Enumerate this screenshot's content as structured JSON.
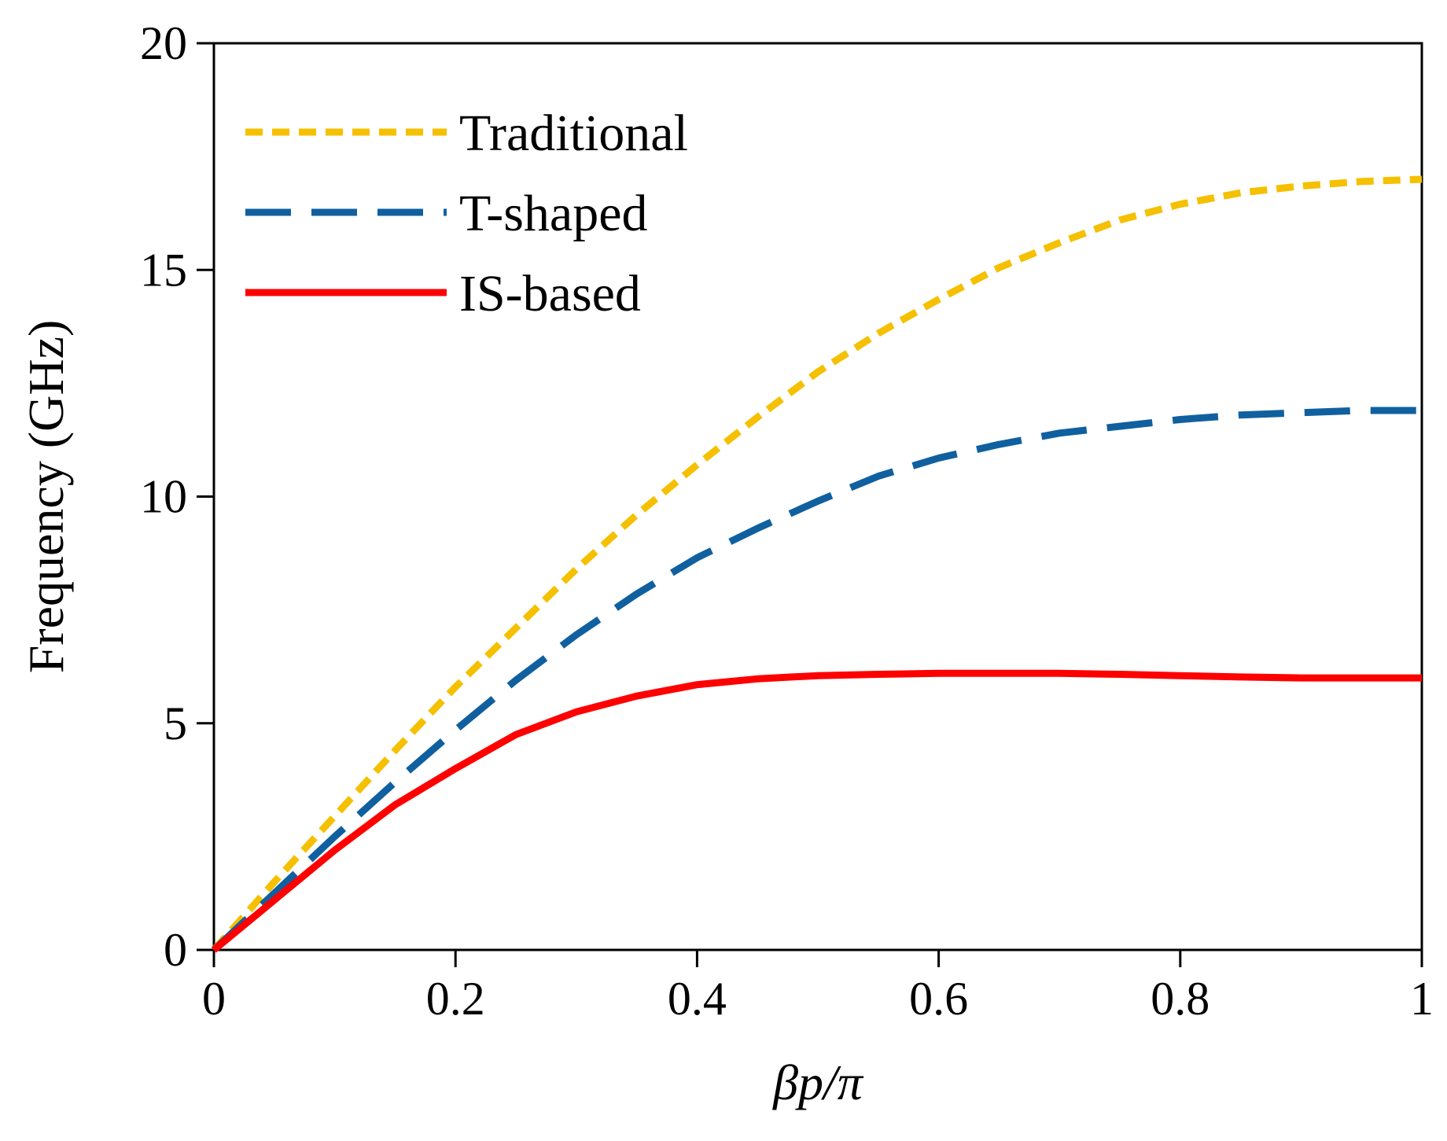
{
  "chart_data": {
    "type": "line",
    "xlabel": "βp/π",
    "ylabel": "Frequency (GHz)",
    "xlim": [
      0,
      1
    ],
    "ylim": [
      0,
      20
    ],
    "xticks": [
      0,
      0.2,
      0.4,
      0.6,
      0.8,
      1
    ],
    "xtick_labels": [
      "0",
      "0.2",
      "0.4",
      "0.6",
      "0.8",
      "1"
    ],
    "yticks": [
      0,
      5,
      10,
      15,
      20
    ],
    "ytick_labels": [
      "0",
      "5",
      "10",
      "15",
      "20"
    ],
    "grid": false,
    "legend_position": "top-left",
    "series": [
      {
        "name": "Traditional",
        "color": "#F5C000",
        "style": "dotted",
        "x": [
          0,
          0.05,
          0.1,
          0.15,
          0.2,
          0.25,
          0.3,
          0.35,
          0.4,
          0.45,
          0.5,
          0.55,
          0.6,
          0.65,
          0.7,
          0.75,
          0.8,
          0.85,
          0.9,
          0.95,
          1.0
        ],
        "y": [
          0,
          1.5,
          2.95,
          4.4,
          5.8,
          7.1,
          8.4,
          9.6,
          10.7,
          11.75,
          12.75,
          13.6,
          14.35,
          15.05,
          15.6,
          16.1,
          16.45,
          16.7,
          16.85,
          16.95,
          17.0
        ]
      },
      {
        "name": "T-shaped",
        "color": "#1060A0",
        "style": "dashed",
        "x": [
          0,
          0.05,
          0.1,
          0.15,
          0.2,
          0.25,
          0.3,
          0.35,
          0.4,
          0.45,
          0.5,
          0.55,
          0.6,
          0.65,
          0.7,
          0.75,
          0.8,
          0.85,
          0.9,
          0.95,
          1.0
        ],
        "y": [
          0,
          1.25,
          2.5,
          3.7,
          4.85,
          5.95,
          6.95,
          7.85,
          8.65,
          9.3,
          9.9,
          10.45,
          10.85,
          11.15,
          11.4,
          11.55,
          11.7,
          11.8,
          11.85,
          11.9,
          11.9
        ]
      },
      {
        "name": "IS-based",
        "color": "#FF0000",
        "style": "solid",
        "x": [
          0,
          0.05,
          0.1,
          0.15,
          0.2,
          0.25,
          0.3,
          0.35,
          0.4,
          0.45,
          0.5,
          0.55,
          0.6,
          0.65,
          0.7,
          0.75,
          0.8,
          0.85,
          0.9,
          0.95,
          1.0
        ],
        "y": [
          0,
          1.1,
          2.2,
          3.2,
          4.0,
          4.75,
          5.25,
          5.6,
          5.85,
          5.98,
          6.05,
          6.08,
          6.1,
          6.1,
          6.1,
          6.08,
          6.05,
          6.02,
          6.0,
          6.0,
          6.0
        ]
      }
    ]
  }
}
